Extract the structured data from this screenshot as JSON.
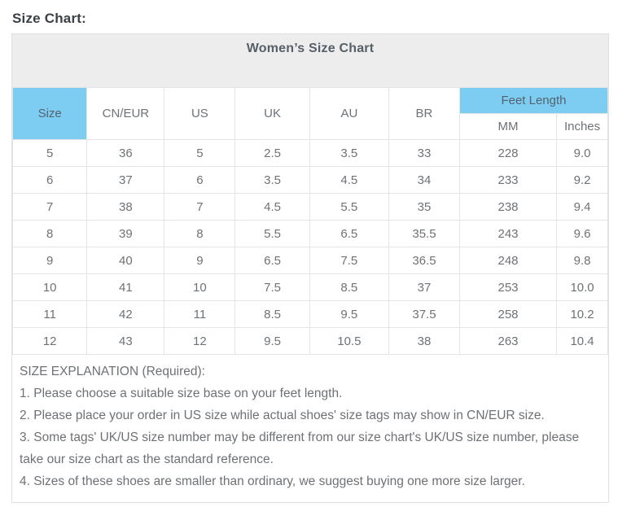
{
  "page": {
    "heading": "Size Chart:"
  },
  "chart_data": {
    "type": "table",
    "title": "Women’s Size Chart",
    "columns": [
      "Size",
      "CN/EUR",
      "US",
      "UK",
      "AU",
      "BR",
      "MM",
      "Inches"
    ],
    "column_groups": {
      "feet_length": "Feet Length"
    },
    "rows": [
      [
        "5",
        "36",
        "5",
        "2.5",
        "3.5",
        "33",
        "228",
        "9.0"
      ],
      [
        "6",
        "37",
        "6",
        "3.5",
        "4.5",
        "34",
        "233",
        "9.2"
      ],
      [
        "7",
        "38",
        "7",
        "4.5",
        "5.5",
        "35",
        "238",
        "9.4"
      ],
      [
        "8",
        "39",
        "8",
        "5.5",
        "6.5",
        "35.5",
        "243",
        "9.6"
      ],
      [
        "9",
        "40",
        "9",
        "6.5",
        "7.5",
        "36.5",
        "248",
        "9.8"
      ],
      [
        "10",
        "41",
        "10",
        "7.5",
        "8.5",
        "37",
        "253",
        "10.0"
      ],
      [
        "11",
        "42",
        "11",
        "8.5",
        "9.5",
        "37.5",
        "258",
        "10.2"
      ],
      [
        "12",
        "43",
        "12",
        "9.5",
        "10.5",
        "38",
        "263",
        "10.4"
      ]
    ]
  },
  "explanation": {
    "heading": "SIZE EXPLANATION (Required):",
    "lines": [
      "1. Please choose a suitable size base on your feet length.",
      "2. Please place your order in US size while actual shoes' size tags may show in CN/EUR size.",
      "3. Some tags' UK/US size number may be different from our size chart's UK/US size number, please take our size chart as the standard reference.",
      "4. Sizes of these shoes are smaller than ordinary, we suggest buying one more size larger."
    ]
  },
  "colors": {
    "accent_blue": "#7dcdf3",
    "title_band_gray": "#ededee",
    "border_gray": "#e4e4e4",
    "body_text_gray": "#6d7176",
    "heading_dark": "#3b4046"
  }
}
